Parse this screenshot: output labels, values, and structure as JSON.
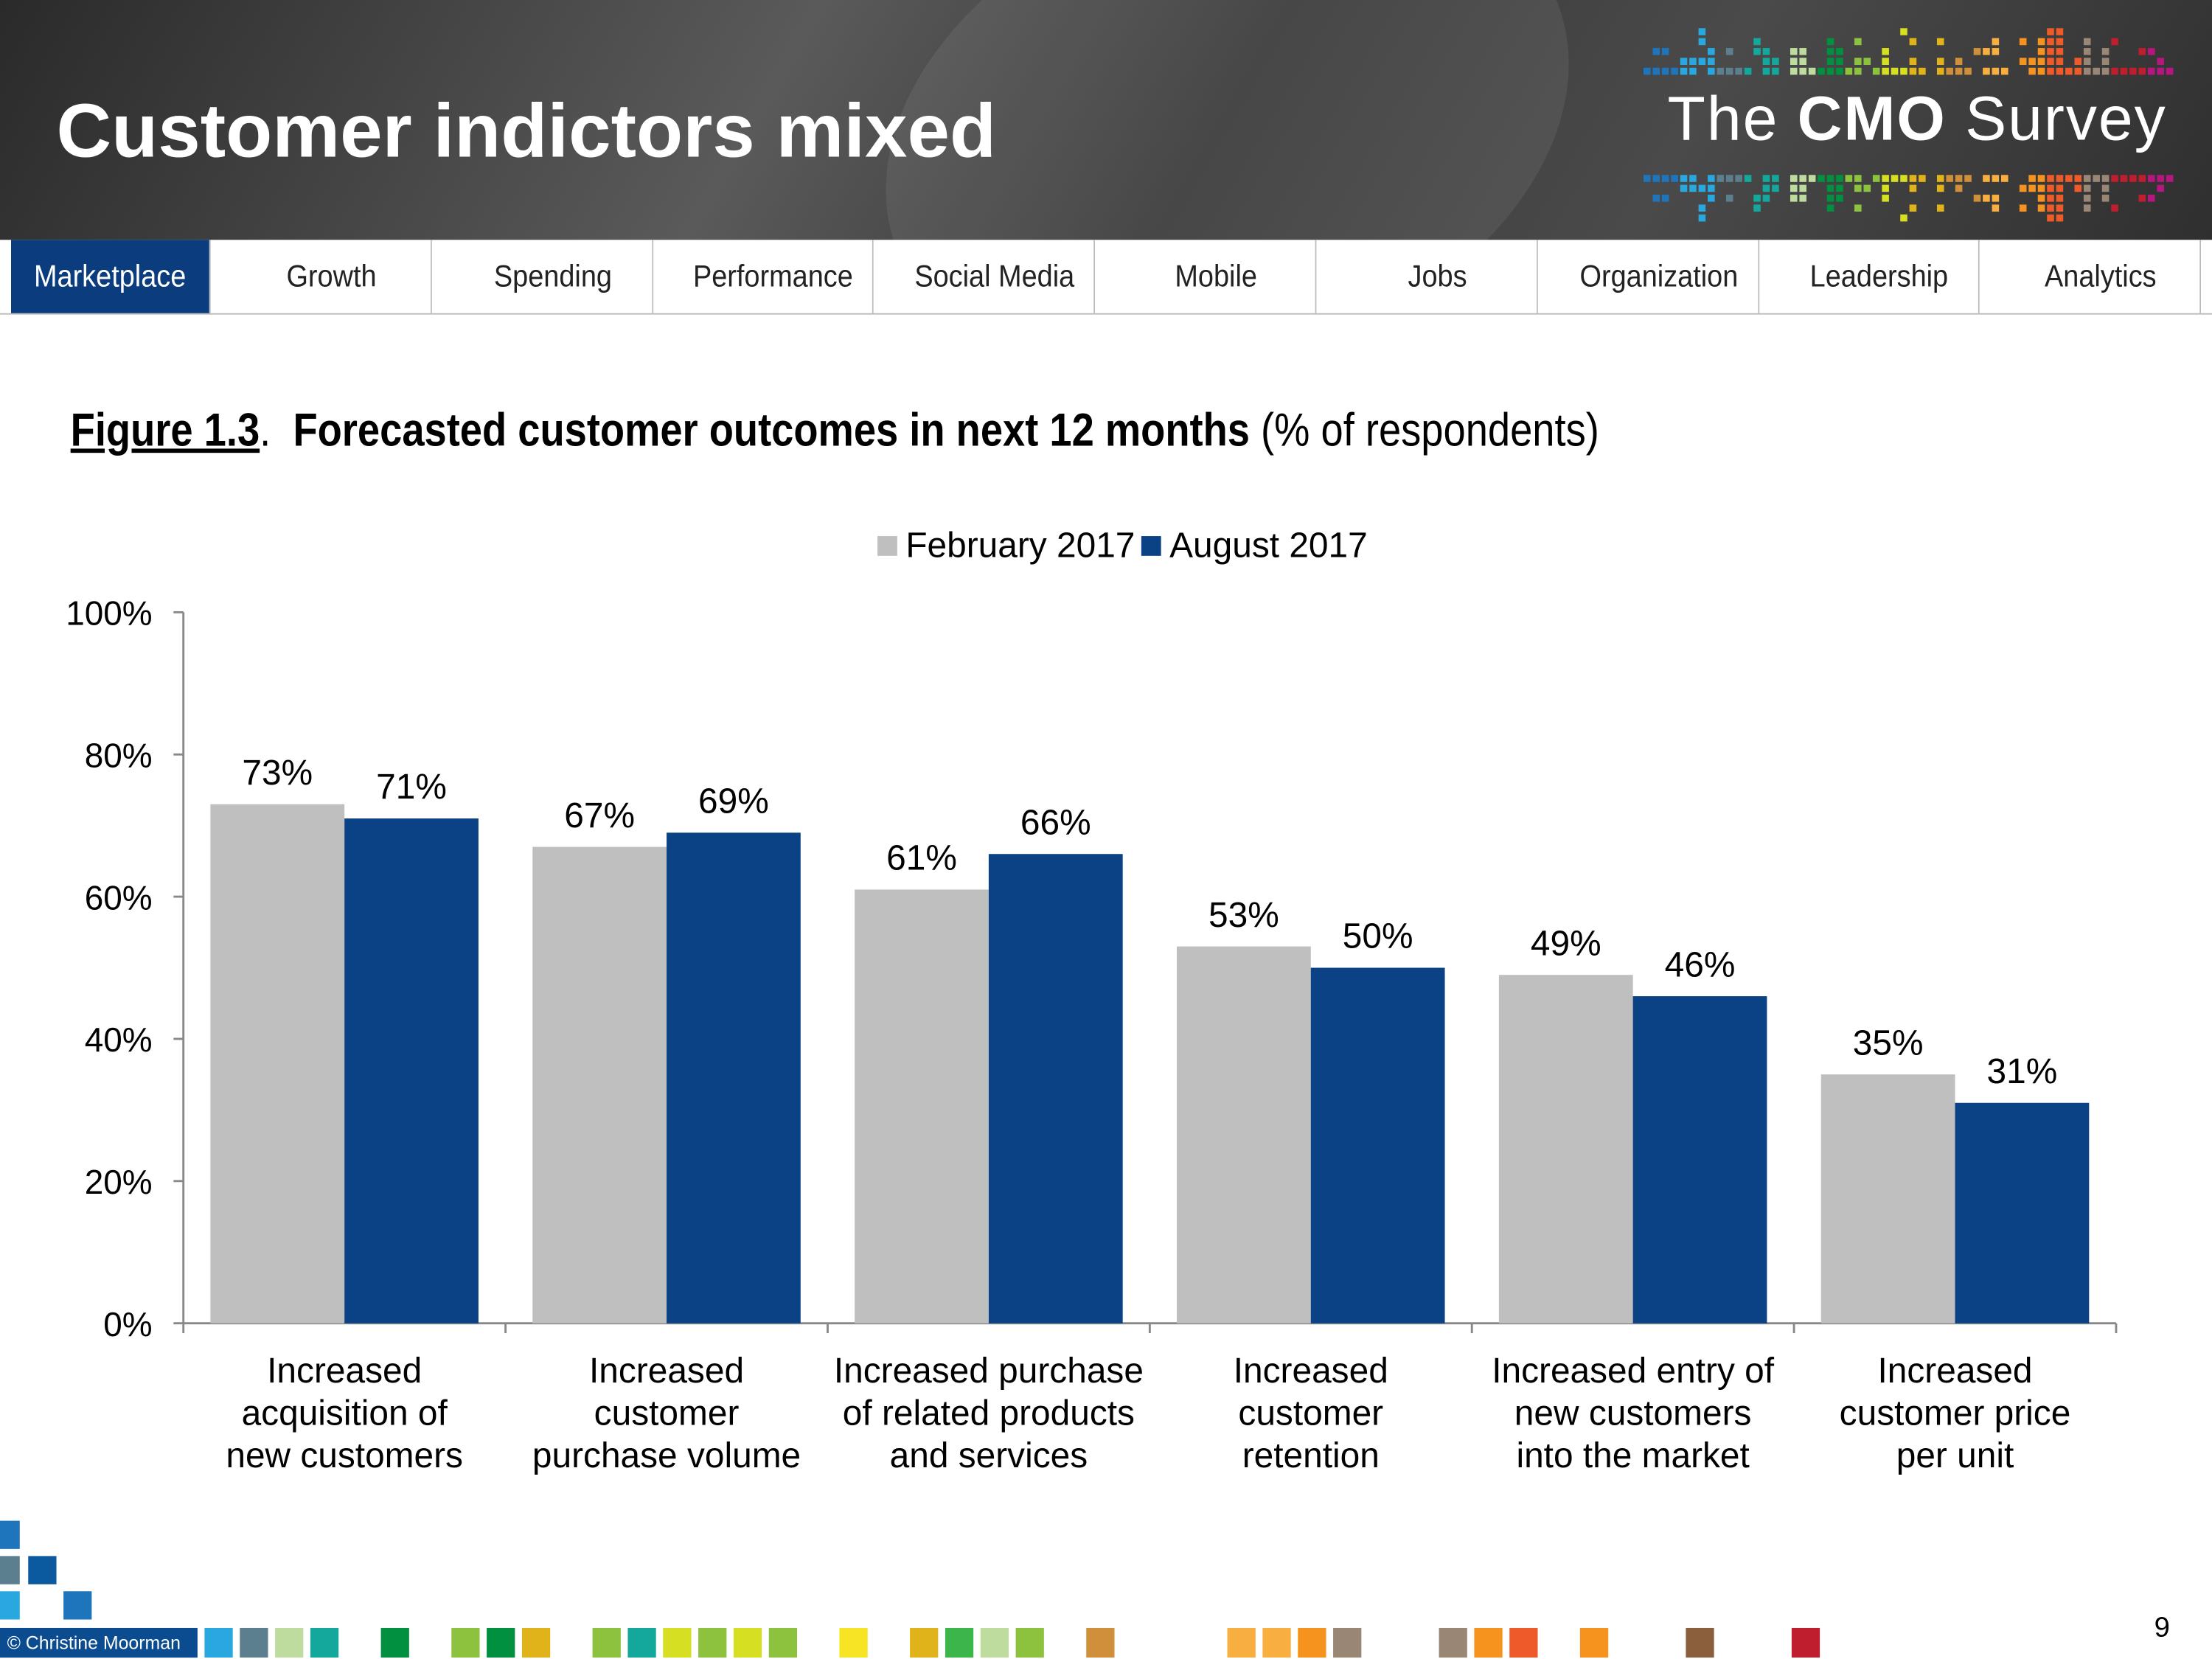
{
  "header": {
    "title": "Customer indictors mixed",
    "logo": "The CMO Survey",
    "logo_parts": [
      "The ",
      "CMO",
      " Survey"
    ]
  },
  "nav": {
    "tabs": [
      {
        "label": "Marketplace",
        "active": true
      },
      {
        "label": "Growth"
      },
      {
        "label": "Spending"
      },
      {
        "label": "Performance"
      },
      {
        "label": "Social Media"
      },
      {
        "label": "Mobile"
      },
      {
        "label": "Jobs"
      },
      {
        "label": "Organization"
      },
      {
        "label": "Leadership"
      },
      {
        "label": "Analytics"
      }
    ]
  },
  "figure": {
    "label": "Figure 1.3",
    "title": "Forecasted customer outcomes in next 12 months",
    "unit": "(% of respondents)"
  },
  "chart_data": {
    "type": "bar",
    "categories": [
      [
        "Increased",
        "acquisition of",
        "new customers"
      ],
      [
        "Increased",
        "customer",
        "purchase volume"
      ],
      [
        "Increased purchase",
        "of related products",
        "and services"
      ],
      [
        "Increased",
        "customer",
        "retention"
      ],
      [
        "Increased entry of",
        "new customers",
        "into the market"
      ],
      [
        "Increased",
        "customer price",
        "per unit"
      ]
    ],
    "series": [
      {
        "name": "February 2017",
        "color": "#bfbfbf",
        "values": [
          73,
          67,
          61,
          53,
          49,
          35
        ]
      },
      {
        "name": "August 2017",
        "color": "#0b4285",
        "values": [
          71,
          69,
          66,
          50,
          46,
          31
        ]
      }
    ],
    "ylim": [
      0,
      100
    ],
    "yticks": [
      "0%",
      "20%",
      "40%",
      "60%",
      "80%",
      "100%"
    ],
    "value_suffix": "%",
    "legend": "top-center",
    "grid": false
  },
  "footer": {
    "copyright": "© Christine Moorman",
    "page_number": "9"
  },
  "colors": {
    "accent": "#0b3d7e",
    "header_bg": "#3c3c3c"
  }
}
